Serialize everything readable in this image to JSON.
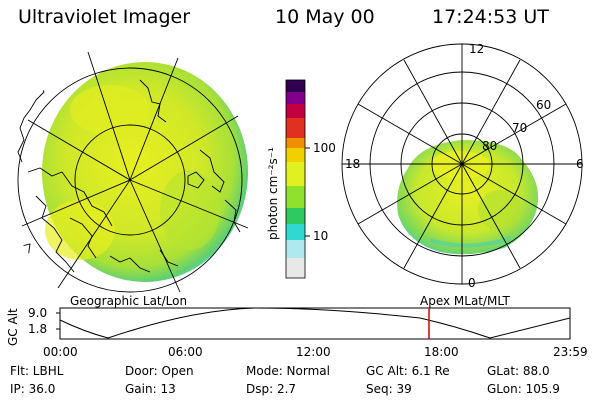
{
  "header": {
    "instrument": "Ultraviolet Imager",
    "date": "10 May 00",
    "time": "17:24:53 UT"
  },
  "colorbar": {
    "unit_label": "photon cm⁻²s⁻¹",
    "tick_100": "100",
    "tick_10": "10",
    "colors": [
      "#e8e8e8",
      "#b0e8f0",
      "#30d8d0",
      "#30c860",
      "#90e030",
      "#e0f020",
      "#f0d000",
      "#f09000",
      "#e03020",
      "#c00040",
      "#80008a",
      "#300050"
    ]
  },
  "polar_plot": {
    "mlt_top": "12",
    "mlt_left": "18",
    "mlt_right": "6",
    "mlt_bottom": "0",
    "lat_60": "60",
    "lat_70": "70",
    "lat_80": "80"
  },
  "timeline": {
    "left_caption": "Geographic Lat/Lon",
    "right_caption": "Apex MLat/MLT",
    "axis_label": "GC Alt",
    "y_top": "9.0",
    "y_bottom": "1.8",
    "ticks": [
      "00:00",
      "06:00",
      "12:00",
      "18:00",
      "23:59"
    ],
    "marker_color": "#d00000",
    "marker_time": "17:24:53"
  },
  "info": {
    "flt": "Flt: LBHL",
    "door": "Door: Open",
    "mode": "Mode: Normal",
    "gc_alt": "GC Alt: 6.1 Re",
    "glat": "GLat:  88.0",
    "ip": "IP: 36.0",
    "gain": "Gain: 13",
    "dsp": "Dsp:    2.7",
    "seq": "Seq: 39",
    "glon": "GLon: 105.9"
  }
}
